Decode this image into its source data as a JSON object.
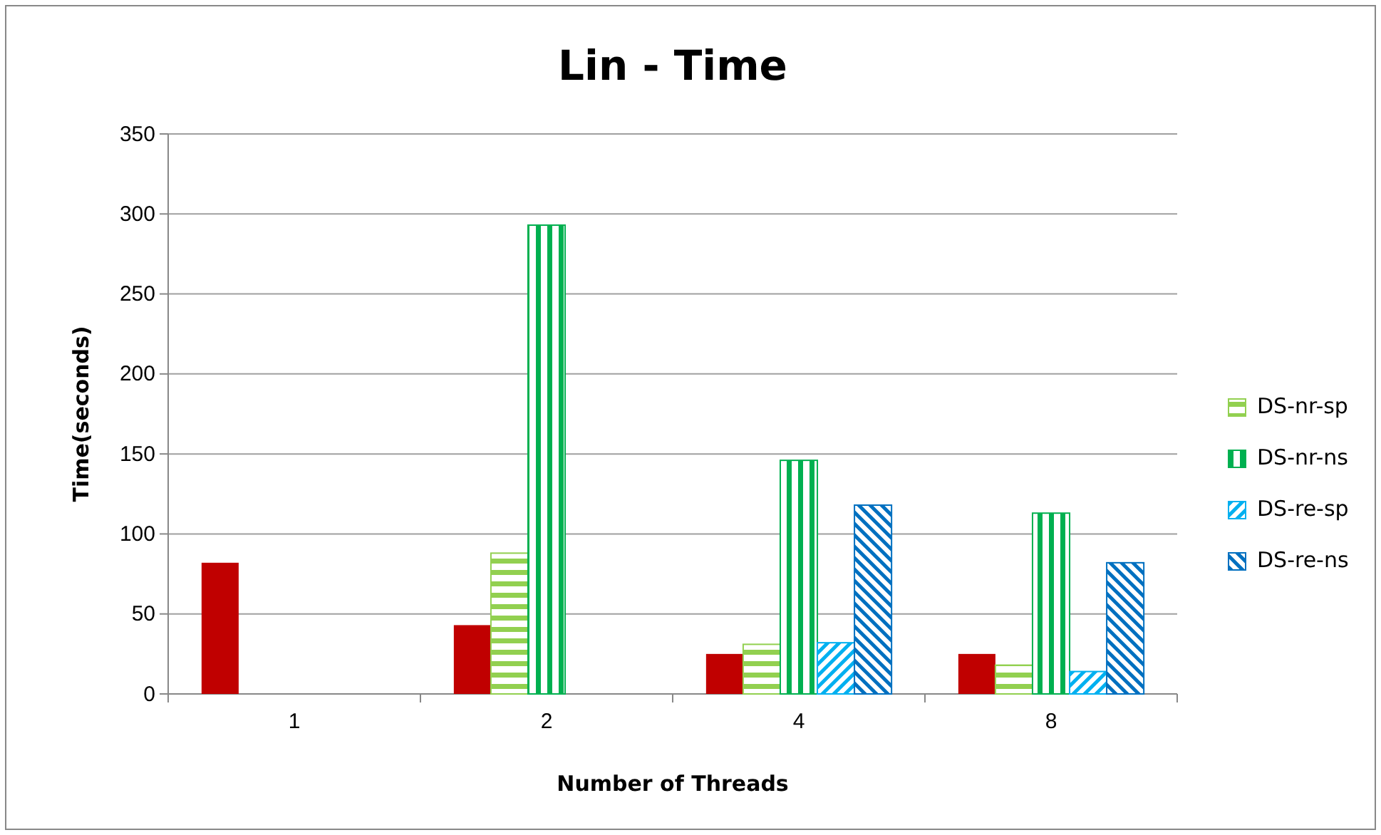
{
  "chart_data": {
    "type": "bar",
    "title": "Lin - Time",
    "xlabel": "Number of Threads",
    "ylabel": "Time(seconds)",
    "categories": [
      "1",
      "2",
      "4",
      "8"
    ],
    "series": [
      {
        "color": "#c00000",
        "values": [
          82,
          43,
          25,
          25
        ]
      },
      {
        "name": "DS-nr-sp",
        "color": "#92d050",
        "values": [
          null,
          88,
          31,
          18
        ]
      },
      {
        "name": "DS-nr-ns",
        "color": "#00b050",
        "values": [
          null,
          293,
          146,
          113
        ]
      },
      {
        "name": "DS-re-sp",
        "color": "#00b0f0",
        "values": [
          null,
          null,
          32,
          14
        ]
      },
      {
        "name": "DS-re-ns",
        "color": "#0070c0",
        "values": [
          null,
          null,
          118,
          82
        ]
      }
    ],
    "ylim": [
      0,
      350
    ],
    "yticks": [
      0,
      50,
      100,
      150,
      200,
      250,
      300,
      350
    ],
    "grid": "y",
    "legend": "right"
  }
}
